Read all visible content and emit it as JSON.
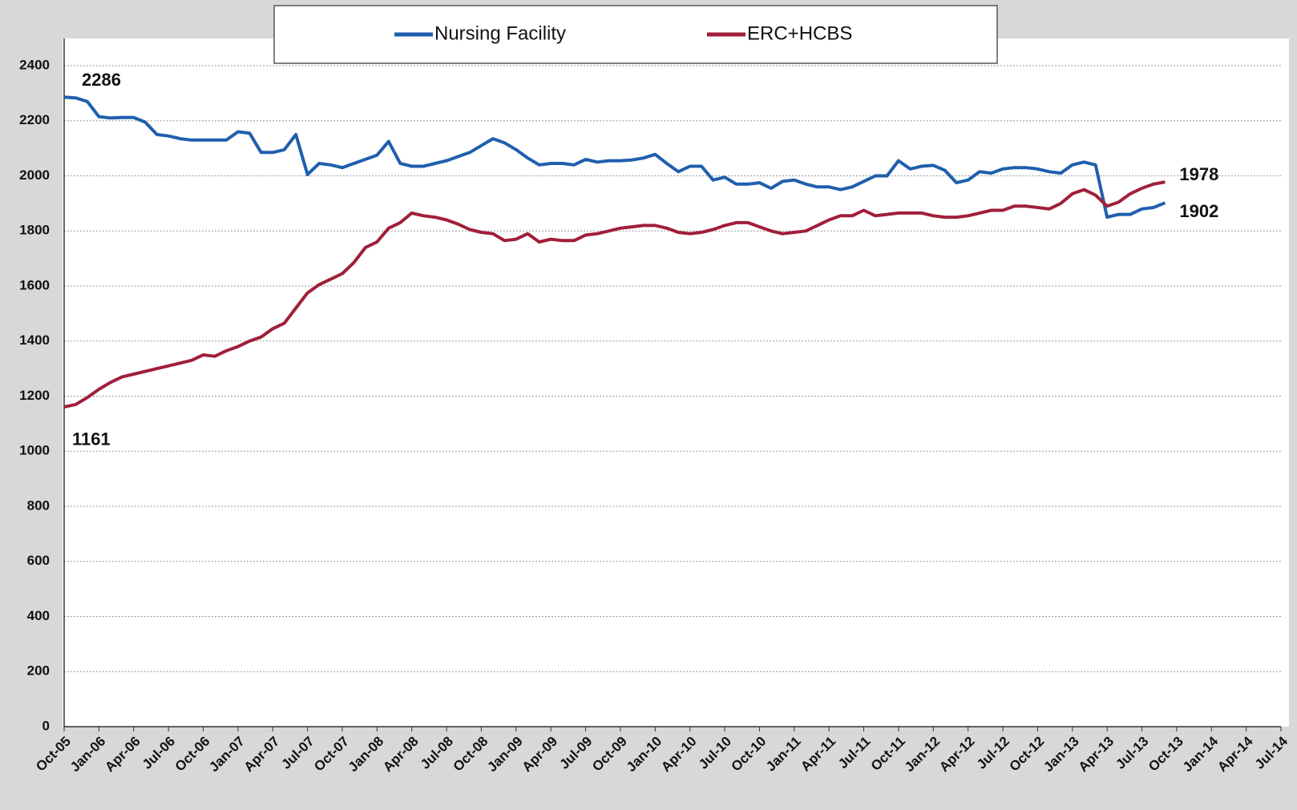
{
  "chart_data": {
    "type": "line",
    "categories": [
      "Oct-05",
      null,
      null,
      "Jan-06",
      null,
      null,
      "Apr-06",
      null,
      null,
      "Jul-06",
      null,
      null,
      "Oct-06",
      null,
      null,
      "Jan-07",
      null,
      null,
      "Apr-07",
      null,
      null,
      "Jul-07",
      null,
      null,
      "Oct-07",
      null,
      null,
      "Jan-08",
      null,
      null,
      "Apr-08",
      null,
      null,
      "Jul-08",
      null,
      null,
      "Oct-08",
      null,
      null,
      "Jan-09",
      null,
      null,
      "Apr-09",
      null,
      null,
      "Jul-09",
      null,
      null,
      "Oct-09",
      null,
      null,
      "Jan-10",
      null,
      null,
      "Apr-10",
      null,
      null,
      "Jul-10",
      null,
      null,
      "Oct-10",
      null,
      null,
      "Jan-11",
      null,
      null,
      "Apr-11",
      null,
      null,
      "Jul-11",
      null,
      null,
      "Oct-11",
      null,
      null,
      "Jan-12",
      null,
      null,
      "Apr-12",
      null,
      null,
      "Jul-12",
      null,
      null,
      "Oct-12",
      null,
      null,
      "Jan-13",
      null,
      null,
      "Apr-13",
      null,
      null,
      "Jul-13",
      null,
      null,
      "Oct-13",
      null,
      null,
      "Jan-14",
      null,
      null,
      "Apr-14",
      null,
      null,
      "Jul-14"
    ],
    "series": [
      {
        "name": "Nursing Facility",
        "color": "#1f5fad",
        "values": [
          2286,
          2283,
          2270,
          2215,
          2210,
          2212,
          2212,
          2195,
          2150,
          2145,
          2135,
          2130,
          2130,
          2130,
          2130,
          2160,
          2155,
          2085,
          2085,
          2095,
          2150,
          2005,
          2045,
          2040,
          2030,
          2045,
          2060,
          2075,
          2125,
          2045,
          2035,
          2035,
          2045,
          2055,
          2070,
          2085,
          2110,
          2135,
          2120,
          2095,
          2065,
          2040,
          2045,
          2045,
          2040,
          2060,
          2050,
          2055,
          2055,
          2058,
          2065,
          2078,
          2045,
          2015,
          2035,
          2035,
          1985,
          1995,
          1970,
          1970,
          1975,
          1955,
          1980,
          1985,
          1970,
          1960,
          1960,
          1950,
          1960,
          1980,
          2000,
          2000,
          2055,
          2025,
          2035,
          2038,
          2020,
          1975,
          1985,
          2015,
          2010,
          2025,
          2030,
          2030,
          2025,
          2015,
          2010,
          2040,
          2050,
          2040,
          1850,
          1860,
          1860,
          1880,
          1885,
          1902,
          null,
          null,
          null,
          null,
          null,
          null,
          null,
          null,
          null,
          null
        ]
      },
      {
        "name": "ERC+HCBS",
        "color": "#a01f3a",
        "values": [
          1161,
          1170,
          1195,
          1225,
          1250,
          1270,
          1280,
          1290,
          1300,
          1310,
          1320,
          1330,
          1350,
          1345,
          1365,
          1380,
          1400,
          1415,
          1445,
          1465,
          1520,
          1575,
          1605,
          1625,
          1645,
          1685,
          1740,
          1760,
          1810,
          1830,
          1865,
          1855,
          1850,
          1840,
          1825,
          1805,
          1795,
          1790,
          1765,
          1770,
          1790,
          1760,
          1770,
          1765,
          1765,
          1785,
          1790,
          1800,
          1810,
          1815,
          1820,
          1820,
          1810,
          1795,
          1790,
          1795,
          1805,
          1820,
          1830,
          1830,
          1815,
          1800,
          1790,
          1795,
          1800,
          1820,
          1840,
          1855,
          1855,
          1875,
          1855,
          1860,
          1865,
          1865,
          1865,
          1855,
          1850,
          1850,
          1855,
          1865,
          1875,
          1875,
          1890,
          1890,
          1885,
          1880,
          1900,
          1935,
          1950,
          1930,
          1890,
          1905,
          1935,
          1955,
          1970,
          1978,
          null,
          null,
          null,
          null,
          null,
          null,
          null,
          null,
          null,
          null
        ]
      }
    ],
    "ylim": [
      0,
      2400
    ],
    "yticks": [
      0,
      200,
      400,
      600,
      800,
      1000,
      1200,
      1400,
      1600,
      1800,
      2000,
      2200,
      2400
    ],
    "grid": true,
    "legend": "top"
  }
}
